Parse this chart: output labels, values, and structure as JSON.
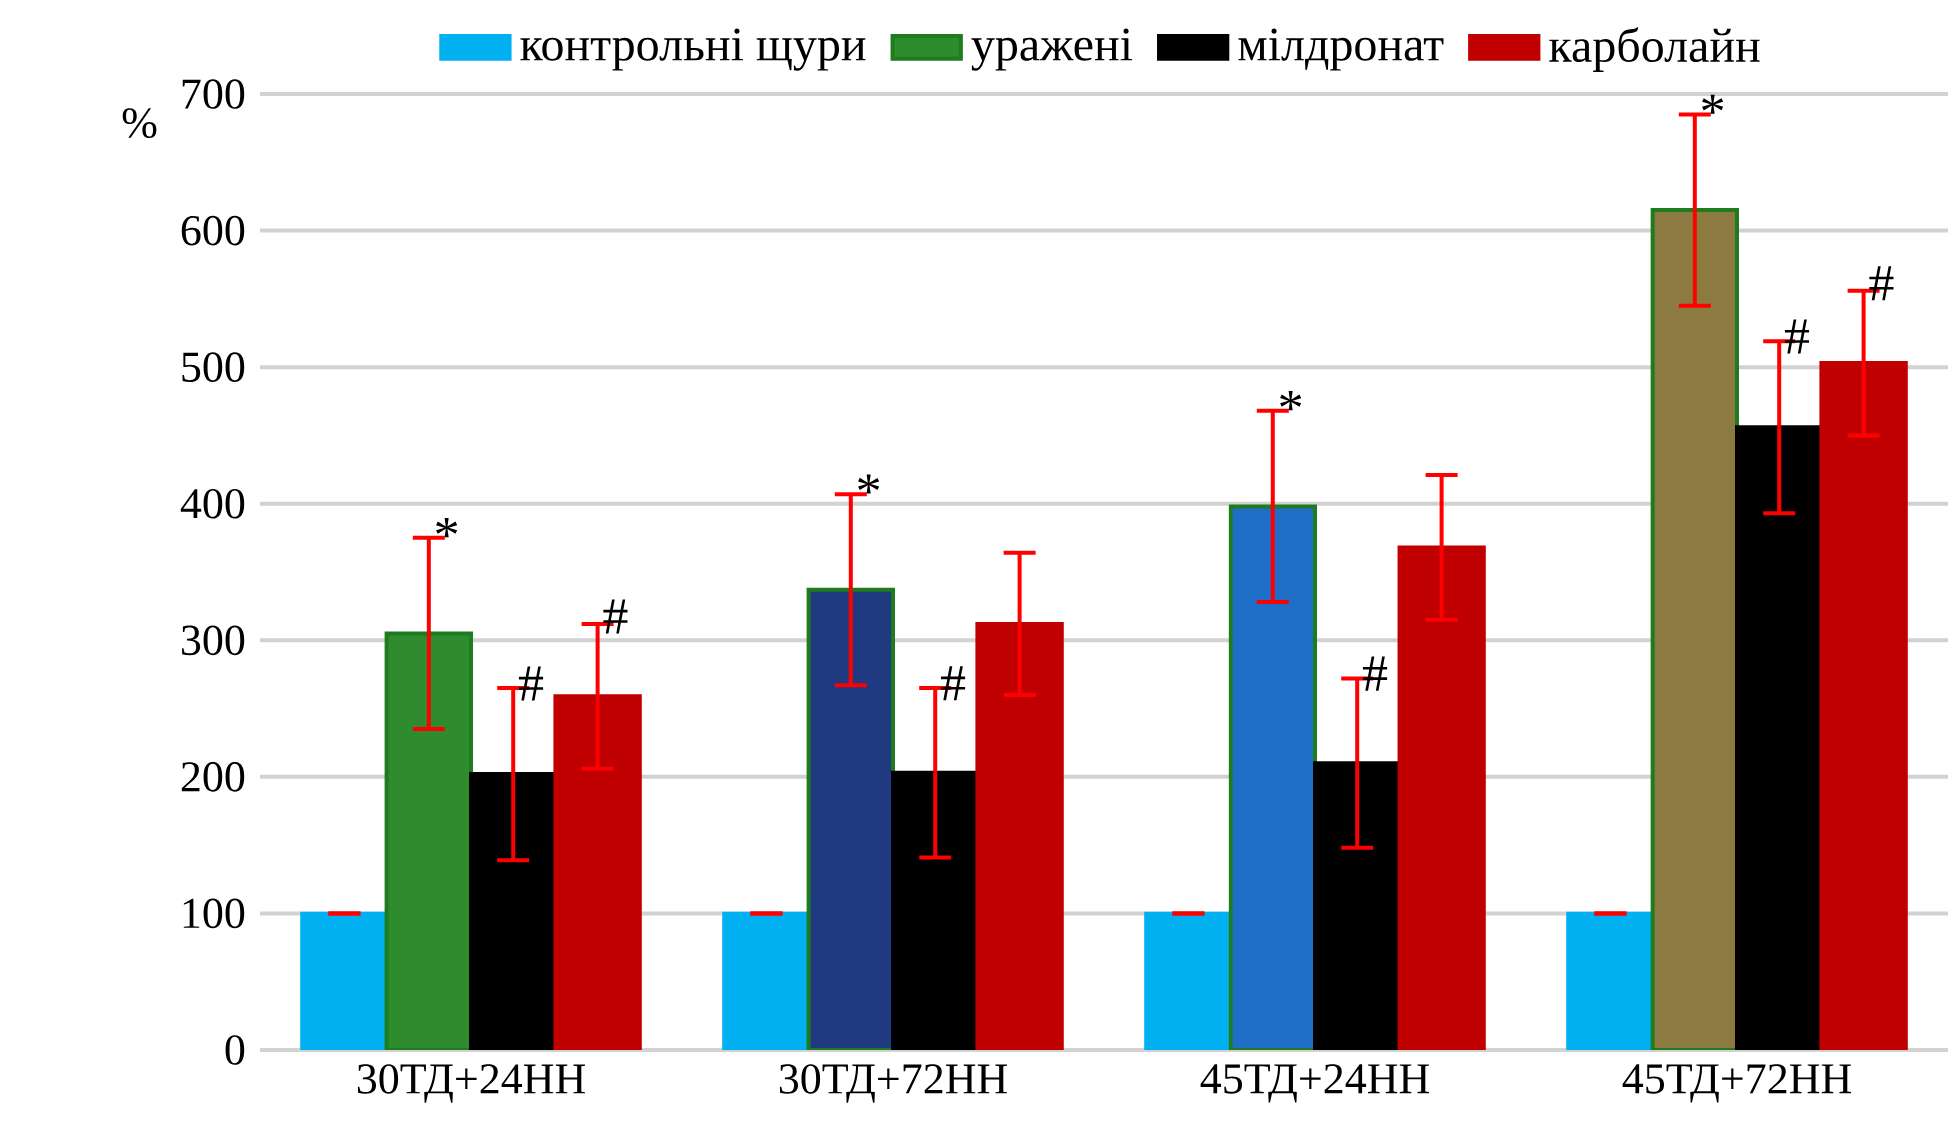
{
  "chart_data": {
    "type": "bar",
    "ylabel": "%",
    "categories": [
      "30ТД+24НН",
      "30ТД+72НН",
      "45ТД+24НН",
      "45ТД+72НН"
    ],
    "series": [
      {
        "name": "контрольні щури",
        "color": "#00b0f0",
        "values": [
          100,
          100,
          100,
          100
        ],
        "errors": [
          0,
          0,
          0,
          0
        ]
      },
      {
        "name": "уражені",
        "color": "#1e7b1e",
        "colors": [
          "#2e8b2e",
          "#1f3a80",
          "#1f6fc8",
          "#8c7a40"
        ],
        "values": [
          305,
          337,
          398,
          615
        ],
        "errors": [
          70,
          70,
          70,
          70
        ],
        "value_labels": [
          "*",
          "*",
          "*",
          "*"
        ]
      },
      {
        "name": "мілдронат",
        "color": "#000000",
        "values": [
          202,
          203,
          210,
          456
        ],
        "errors": [
          63,
          62,
          62,
          63
        ],
        "value_labels": [
          "#",
          "#",
          "#",
          "#"
        ]
      },
      {
        "name": "карболайн",
        "color": "#c00000",
        "values": [
          259,
          312,
          368,
          503
        ],
        "errors": [
          53,
          52,
          53,
          53
        ],
        "value_labels": [
          "#",
          null,
          null,
          "#"
        ]
      }
    ],
    "ylim": [
      0,
      700
    ],
    "yticks": [
      0,
      100,
      200,
      300,
      400,
      500,
      600,
      700
    ],
    "grid": "y",
    "legend": "top"
  }
}
